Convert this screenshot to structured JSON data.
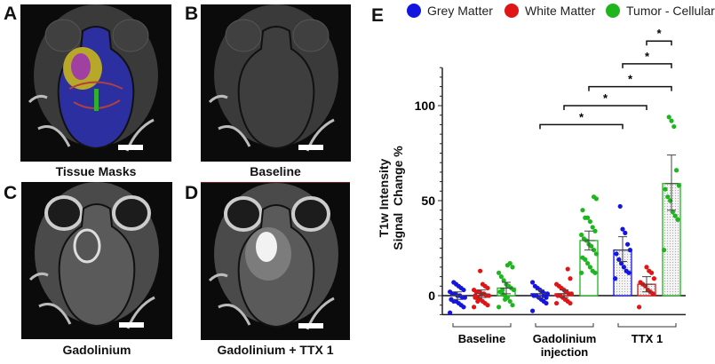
{
  "panels": [
    {
      "letter": "A",
      "caption": "Tissue Masks",
      "type": "masks"
    },
    {
      "letter": "B",
      "caption": "Baseline",
      "type": "baseline"
    },
    {
      "letter": "C",
      "caption": "Gadolinium",
      "type": "gad"
    },
    {
      "letter": "D",
      "caption": "Gadolinium + TTX 1",
      "type": "ttx"
    }
  ],
  "chart_letter": "E",
  "chart_data": {
    "type": "bar",
    "ylabel_line1": "T1w Intensity",
    "ylabel_line2": "Signal  Change %",
    "ylim": [
      -10,
      120
    ],
    "yticks": [
      0,
      50,
      100
    ],
    "groups": [
      {
        "label": "Baseline",
        "label2": ""
      },
      {
        "label": "Gadolinium",
        "label2": "injection"
      },
      {
        "label": "TTX 1",
        "label2": ""
      }
    ],
    "series": [
      {
        "name": "Grey Matter",
        "color": "#1515e0",
        "means": [
          0,
          1,
          24
        ],
        "err": [
          [
            -2,
            2
          ],
          [
            -1,
            3
          ],
          [
            18,
            31
          ]
        ],
        "points": [
          [
            -9,
            -6,
            -5,
            -4,
            -3,
            -3,
            -2,
            -1,
            -1,
            0,
            0,
            1,
            1,
            2,
            3,
            4,
            5,
            6,
            7,
            -2
          ],
          [
            -8,
            -4,
            -3,
            -2,
            -1,
            0,
            0,
            1,
            1,
            2,
            3,
            4,
            5,
            7,
            -1,
            0
          ],
          [
            9,
            12,
            13,
            15,
            17,
            19,
            22,
            24,
            27,
            33,
            35,
            47
          ]
        ]
      },
      {
        "name": "White Matter",
        "color": "#e01515",
        "means": [
          1,
          1,
          6
        ],
        "err": [
          [
            -1,
            3
          ],
          [
            -1,
            3
          ],
          [
            2,
            10
          ]
        ],
        "points": [
          [
            -6,
            -5,
            -4,
            -3,
            -2,
            -1,
            -1,
            0,
            0,
            1,
            1,
            2,
            2,
            3,
            4,
            5,
            6,
            13,
            -3,
            0
          ],
          [
            -4,
            -4,
            -3,
            -2,
            -1,
            0,
            0,
            1,
            1,
            2,
            3,
            4,
            5,
            6,
            9,
            14,
            -2
          ],
          [
            -6,
            1,
            2,
            3,
            5,
            6,
            7,
            9,
            12,
            13,
            15
          ]
        ]
      },
      {
        "name": "Tumor - Cellular",
        "color": "#1fb51f",
        "means": [
          4,
          29,
          59
        ],
        "err": [
          [
            1,
            7
          ],
          [
            24,
            34
          ],
          [
            45,
            74
          ]
        ],
        "points": [
          [
            -6,
            -5,
            -3,
            -1,
            0,
            1,
            2,
            3,
            4,
            5,
            6,
            8,
            10,
            12,
            15,
            17,
            16,
            -2,
            3
          ],
          [
            12,
            12,
            13,
            15,
            17,
            19,
            20,
            22,
            24,
            26,
            27,
            29,
            30,
            32,
            34,
            36,
            39,
            41,
            41,
            45,
            51,
            52
          ],
          [
            24,
            40,
            42,
            44,
            50,
            52,
            56,
            58,
            66,
            89,
            92,
            94
          ]
        ]
      }
    ],
    "bar_style": [
      "none",
      "outline",
      "dotted-fill"
    ],
    "significance": [
      {
        "from": [
          1,
          0
        ],
        "to": [
          2,
          0
        ],
        "y": 90,
        "label": "*"
      },
      {
        "from": [
          1,
          1
        ],
        "to": [
          2,
          1
        ],
        "y": 100,
        "label": "*"
      },
      {
        "from": [
          1,
          2
        ],
        "to": [
          2,
          2
        ],
        "y": 110,
        "label": "*"
      },
      {
        "from": [
          2,
          0
        ],
        "to": [
          2,
          2
        ],
        "y": 122,
        "label": "*"
      },
      {
        "from": [
          2,
          1
        ],
        "to": [
          2,
          2
        ],
        "y": 134,
        "label": "*"
      }
    ]
  }
}
